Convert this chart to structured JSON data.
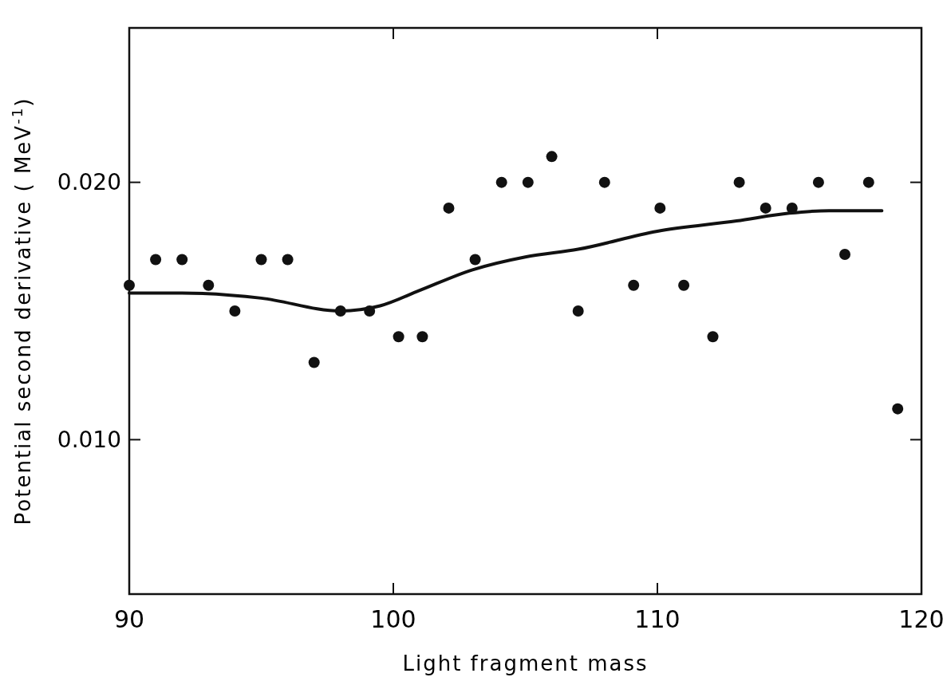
{
  "chart_data": {
    "type": "scatter",
    "xlabel": "Light fragment mass",
    "ylabel": "Potential second derivative ( MeV$^{-1}$)",
    "xlim": [
      90,
      120
    ],
    "xticks": [
      90,
      100,
      110,
      120
    ],
    "ylim": [
      0.004,
      0.026
    ],
    "yticks": [
      {
        "value": 0.01,
        "label": "0.010"
      },
      {
        "value": 0.02,
        "label": "0.020"
      }
    ],
    "grid": false,
    "series": [
      {
        "marker": "circle",
        "color": "#111111",
        "x": [
          90,
          91,
          92,
          93,
          94,
          95,
          96,
          97,
          98,
          99.1,
          100.2,
          101.1,
          102.1,
          103.1,
          104.1,
          105.1,
          106,
          107,
          108,
          109.1,
          110.1,
          111,
          112.1,
          113.1,
          114.1,
          115.1,
          116.1,
          117.1,
          118,
          119.1
        ],
        "values": [
          0.016,
          0.017,
          0.017,
          0.016,
          0.015,
          0.017,
          0.017,
          0.013,
          0.015,
          0.015,
          0.014,
          0.014,
          0.019,
          0.017,
          0.02,
          0.02,
          0.021,
          0.015,
          0.02,
          0.016,
          0.019,
          0.016,
          0.014,
          0.02,
          0.019,
          0.019,
          0.02,
          0.0172,
          0.02,
          0.0112
        ]
      },
      {
        "type": "line",
        "color": "#111111",
        "x": [
          90,
          92,
          95,
          98,
          99.5,
          101,
          103,
          105,
          107,
          110,
          113,
          115,
          116.5,
          118.5
        ],
        "values": [
          0.0157,
          0.0157,
          0.0155,
          0.015,
          0.0152,
          0.0158,
          0.0166,
          0.0171,
          0.0174,
          0.0181,
          0.0185,
          0.0188,
          0.0189,
          0.0189
        ]
      }
    ]
  }
}
